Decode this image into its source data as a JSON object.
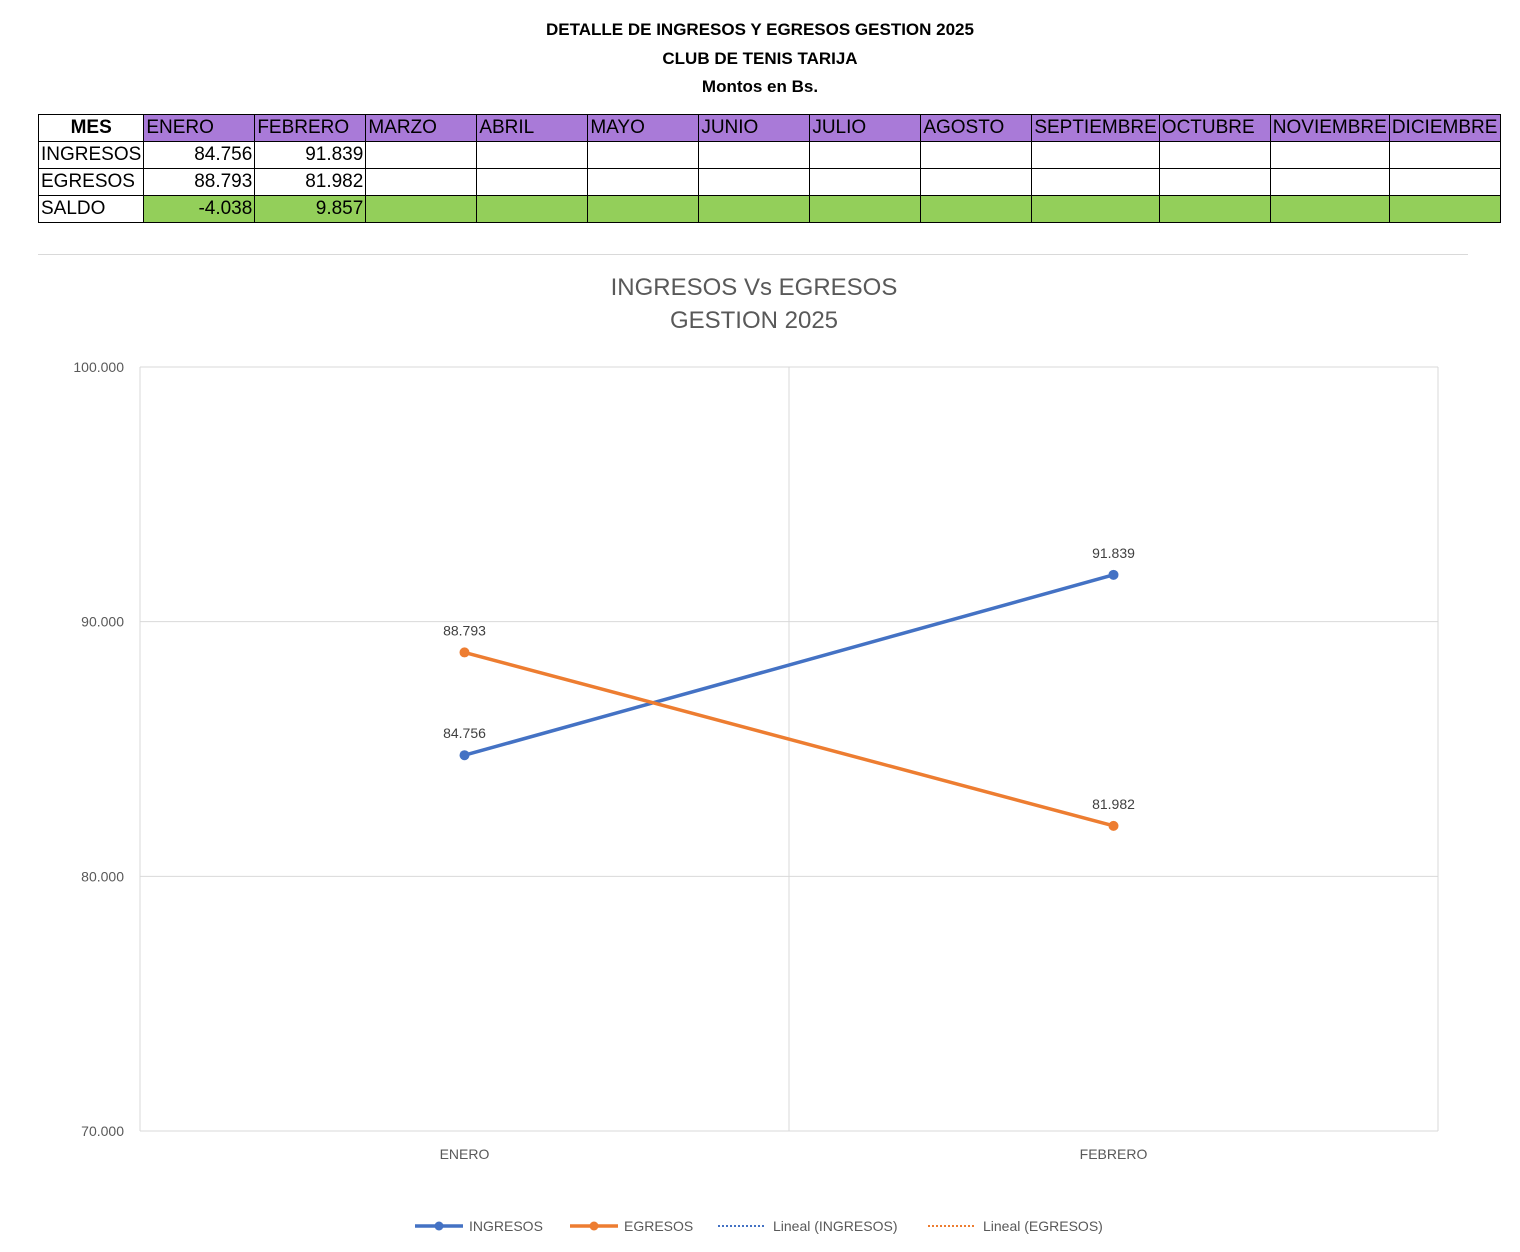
{
  "header": {
    "title": "DETALLE DE INGRESOS Y EGRESOS GESTION 2025",
    "subtitle": "CLUB DE TENIS TARIJA",
    "units": "Montos en Bs."
  },
  "table": {
    "corner": "MES",
    "months": [
      "ENERO",
      "FEBRERO",
      "MARZO",
      "ABRIL",
      "MAYO",
      "JUNIO",
      "JULIO",
      "AGOSTO",
      "SEPTIEMBRE",
      "OCTUBRE",
      "NOVIEMBRE",
      "DICIEMBRE"
    ],
    "rows": [
      {
        "label": "INGRESOS",
        "values": [
          "84.756",
          "91.839",
          "",
          "",
          "",
          "",
          "",
          "",
          "",
          "",
          "",
          ""
        ]
      },
      {
        "label": "EGRESOS",
        "values": [
          "88.793",
          "81.982",
          "",
          "",
          "",
          "",
          "",
          "",
          "",
          "",
          "",
          ""
        ]
      },
      {
        "label": "SALDO",
        "values": [
          "-4.038",
          "9.857",
          "",
          "",
          "",
          "",
          "",
          "",
          "",
          "",
          "",
          ""
        ]
      }
    ],
    "colors": {
      "month_header": "#a97ad8",
      "saldo": "#93cf5a"
    }
  },
  "chart_data": {
    "type": "line",
    "title": [
      "INGRESOS Vs EGRESOS",
      "GESTION 2025"
    ],
    "categories": [
      "ENERO",
      "FEBRERO"
    ],
    "ylim": [
      70000,
      100000
    ],
    "yticks": [
      70000,
      80000,
      90000,
      100000
    ],
    "ytick_labels": [
      "70.000",
      "80.000",
      "90.000",
      "100.000"
    ],
    "grid": true,
    "legend_position": "bottom",
    "series": [
      {
        "name": "INGRESOS",
        "values": [
          84756,
          91839
        ],
        "labels": [
          "84.756",
          "91.839"
        ],
        "color": "#4472c4"
      },
      {
        "name": "EGRESOS",
        "values": [
          88793,
          81982
        ],
        "labels": [
          "88.793",
          "81.982"
        ],
        "color": "#ed7d31"
      }
    ],
    "trendlines": [
      {
        "name": "Lineal (INGRESOS)",
        "color": "#4472c4",
        "style": "dotted"
      },
      {
        "name": "Lineal (EGRESOS)",
        "color": "#ed7d31",
        "style": "dotted"
      }
    ]
  }
}
